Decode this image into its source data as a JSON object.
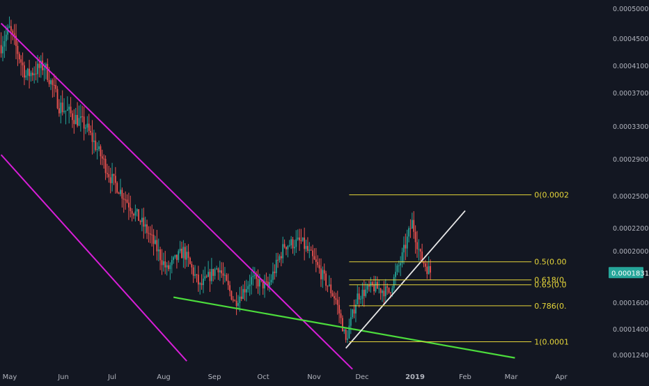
{
  "chart_data": {
    "type": "candlestick",
    "x_ticks": [
      "May",
      "Jun",
      "Jul",
      "Aug",
      "Sep",
      "Oct",
      "Nov",
      "Dec",
      "2019",
      "Feb",
      "Mar",
      "Apr"
    ],
    "y_ticks": [
      "0.0005000",
      "0.0004500",
      "0.0004100",
      "0.0003700",
      "0.0003300",
      "0.0002900",
      "0.0002500",
      "0.0002200",
      "0.0002000",
      "0.0001600",
      "0.0001400",
      "0.0001240"
    ],
    "last_price": "0.0001831",
    "fib_levels": [
      {
        "label": "0(0.0002",
        "ratio": 0
      },
      {
        "label": "0.5(0.00",
        "ratio": 0.5
      },
      {
        "label": "0.618(0.",
        "ratio": 0.618
      },
      {
        "label": "0.65(0.0",
        "ratio": 0.65
      },
      {
        "label": "0.786(0.",
        "ratio": 0.786
      },
      {
        "label": "1(0.0001",
        "ratio": 1
      }
    ],
    "price_anchors": [
      {
        "date": "2018-04-30",
        "price": 0.00044
      },
      {
        "date": "2018-05-05",
        "price": 0.000465
      },
      {
        "date": "2018-05-15",
        "price": 0.000395
      },
      {
        "date": "2018-05-26",
        "price": 0.00041
      },
      {
        "date": "2018-06-04",
        "price": 0.000355
      },
      {
        "date": "2018-06-20",
        "price": 0.00033
      },
      {
        "date": "2018-07-05",
        "price": 0.00027
      },
      {
        "date": "2018-07-15",
        "price": 0.000245
      },
      {
        "date": "2018-07-28",
        "price": 0.000215
      },
      {
        "date": "2018-08-08",
        "price": 0.000185
      },
      {
        "date": "2018-08-18",
        "price": 0.0002
      },
      {
        "date": "2018-08-28",
        "price": 0.000172
      },
      {
        "date": "2018-09-08",
        "price": 0.000188
      },
      {
        "date": "2018-09-18",
        "price": 0.00016
      },
      {
        "date": "2018-09-28",
        "price": 0.000178
      },
      {
        "date": "2018-10-08",
        "price": 0.000172
      },
      {
        "date": "2018-10-18",
        "price": 0.000205
      },
      {
        "date": "2018-10-28",
        "price": 0.000208
      },
      {
        "date": "2018-11-08",
        "price": 0.000185
      },
      {
        "date": "2018-11-18",
        "price": 0.000162
      },
      {
        "date": "2018-11-24",
        "price": 0.000132
      },
      {
        "date": "2018-12-01",
        "price": 0.000165
      },
      {
        "date": "2018-12-10",
        "price": 0.000172
      },
      {
        "date": "2018-12-20",
        "price": 0.000168
      },
      {
        "date": "2018-12-28",
        "price": 0.000195
      },
      {
        "date": "2019-01-03",
        "price": 0.000225
      },
      {
        "date": "2019-01-08",
        "price": 0.000195
      },
      {
        "date": "2019-01-14",
        "price": 0.0001831
      }
    ],
    "colors": {
      "background": "#131722",
      "up": "#26a69a",
      "down": "#ef5350",
      "channel": "#d81ed8",
      "support": "#4cdd3c",
      "trend": "#e8e8e8",
      "fib": "#e6d63a",
      "axis_text": "#b2b5be",
      "price_tag": "#26a69a"
    }
  }
}
